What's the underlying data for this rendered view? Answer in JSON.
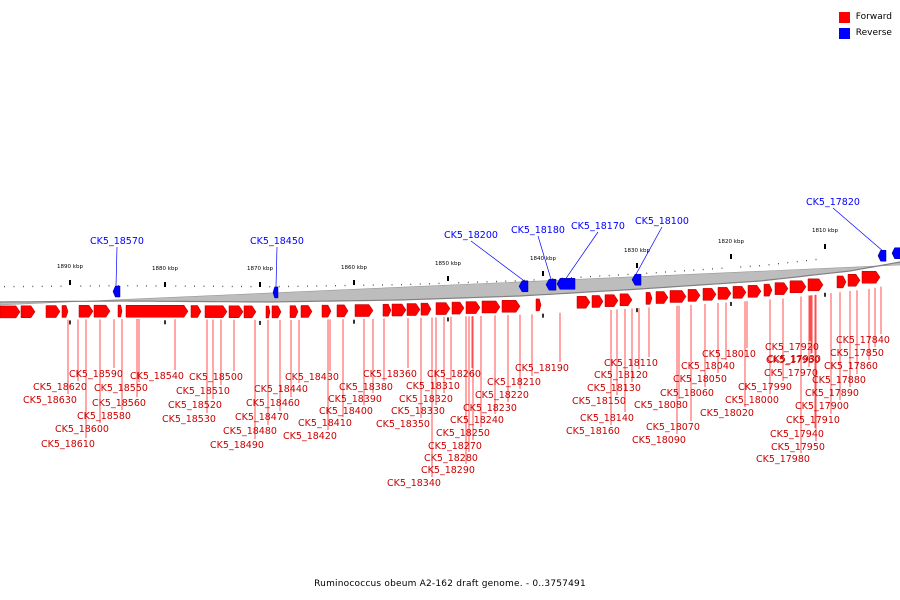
{
  "legend": {
    "forward_label": "Forward",
    "reverse_label": "Reverse",
    "forward_color": "#ff0000",
    "reverse_color": "#0000ff"
  },
  "caption": "Ruminococcus obeum A2-162 draft genome. - 0..3757491",
  "scale_labels": [
    "1890 kbp",
    "1880 kbp",
    "1870 kbp",
    "1860 kbp",
    "1850 kbp",
    "1840 kbp",
    "1830 kbp",
    "1820 kbp",
    "1810 kbp"
  ],
  "reverse_genes": [
    "CK5_18570",
    "CK5_18450",
    "CK5_18200",
    "CK5_18180",
    "CK5_18170",
    "CK5_18100",
    "CK5_17820"
  ],
  "forward_genes": [
    "CK5_18620",
    "CK5_18630",
    "CK5_18590",
    "CK5_18600",
    "CK5_18610",
    "CK5_18550",
    "CK5_18560",
    "CK5_18580",
    "CK5_18540",
    "CK5_18500",
    "CK5_18510",
    "CK5_18520",
    "CK5_18530",
    "CK5_18480",
    "CK5_18490",
    "CK5_18470",
    "CK5_18460",
    "CK5_18440",
    "CK5_18430",
    "CK5_18420",
    "CK5_18410",
    "CK5_18400",
    "CK5_18390",
    "CK5_18380",
    "CK5_18360",
    "CK5_18350",
    "CK5_18340",
    "CK5_18330",
    "CK5_18320",
    "CK5_18310",
    "CK5_18290",
    "CK5_18280",
    "CK5_18270",
    "CK5_18260",
    "CK5_18250",
    "CK5_18240",
    "CK5_18230",
    "CK5_18220",
    "CK5_18210",
    "CK5_18190",
    "CK5_18160",
    "CK5_18150",
    "CK5_18140",
    "CK5_18130",
    "CK5_18120",
    "CK5_18110",
    "CK5_18090",
    "CK5_18080",
    "CK5_18070",
    "CK5_18060",
    "CK5_18050",
    "CK5_18040",
    "CK5_18020",
    "CK5_18010",
    "CK5_18000",
    "CK5_17990",
    "CK5_17980",
    "CK5_17970",
    "CK5_17960",
    "CK5_17950",
    "CK5_17940",
    "CK5_17930",
    "CK5_17920",
    "CK5_17910",
    "CK5_17900",
    "CK5_17890",
    "CK5_17880",
    "CK5_17860",
    "CK5_17850",
    "CK5_17840"
  ]
}
